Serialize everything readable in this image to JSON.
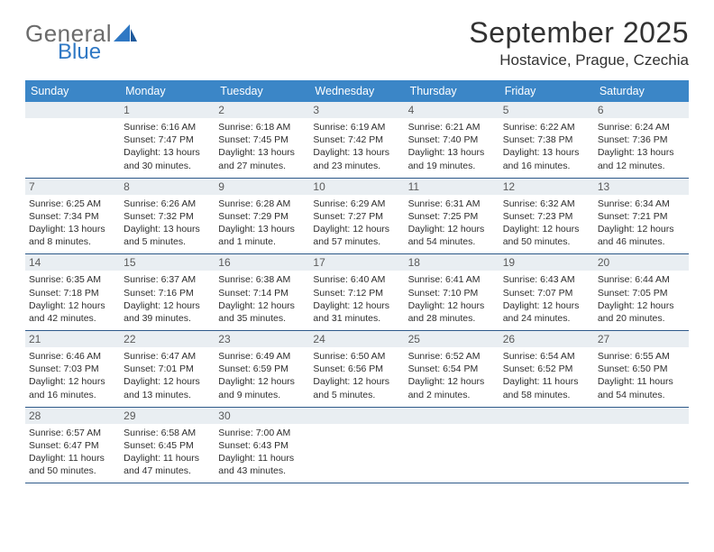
{
  "brand": {
    "general": "General",
    "blue": "Blue"
  },
  "title": "September 2025",
  "location": "Hostavice, Prague, Czechia",
  "colors": {
    "header_bg": "#3b86c7",
    "header_text": "#ffffff",
    "daynum_bg": "#e9eef2",
    "row_border": "#2e5a8a",
    "logo_gray": "#6b6b6b",
    "logo_blue": "#2f78c4"
  },
  "day_names": [
    "Sunday",
    "Monday",
    "Tuesday",
    "Wednesday",
    "Thursday",
    "Friday",
    "Saturday"
  ],
  "weeks": [
    [
      {
        "n": "",
        "lines": []
      },
      {
        "n": "1",
        "lines": [
          "Sunrise: 6:16 AM",
          "Sunset: 7:47 PM",
          "Daylight: 13 hours",
          "and 30 minutes."
        ]
      },
      {
        "n": "2",
        "lines": [
          "Sunrise: 6:18 AM",
          "Sunset: 7:45 PM",
          "Daylight: 13 hours",
          "and 27 minutes."
        ]
      },
      {
        "n": "3",
        "lines": [
          "Sunrise: 6:19 AM",
          "Sunset: 7:42 PM",
          "Daylight: 13 hours",
          "and 23 minutes."
        ]
      },
      {
        "n": "4",
        "lines": [
          "Sunrise: 6:21 AM",
          "Sunset: 7:40 PM",
          "Daylight: 13 hours",
          "and 19 minutes."
        ]
      },
      {
        "n": "5",
        "lines": [
          "Sunrise: 6:22 AM",
          "Sunset: 7:38 PM",
          "Daylight: 13 hours",
          "and 16 minutes."
        ]
      },
      {
        "n": "6",
        "lines": [
          "Sunrise: 6:24 AM",
          "Sunset: 7:36 PM",
          "Daylight: 13 hours",
          "and 12 minutes."
        ]
      }
    ],
    [
      {
        "n": "7",
        "lines": [
          "Sunrise: 6:25 AM",
          "Sunset: 7:34 PM",
          "Daylight: 13 hours",
          "and 8 minutes."
        ]
      },
      {
        "n": "8",
        "lines": [
          "Sunrise: 6:26 AM",
          "Sunset: 7:32 PM",
          "Daylight: 13 hours",
          "and 5 minutes."
        ]
      },
      {
        "n": "9",
        "lines": [
          "Sunrise: 6:28 AM",
          "Sunset: 7:29 PM",
          "Daylight: 13 hours",
          "and 1 minute."
        ]
      },
      {
        "n": "10",
        "lines": [
          "Sunrise: 6:29 AM",
          "Sunset: 7:27 PM",
          "Daylight: 12 hours",
          "and 57 minutes."
        ]
      },
      {
        "n": "11",
        "lines": [
          "Sunrise: 6:31 AM",
          "Sunset: 7:25 PM",
          "Daylight: 12 hours",
          "and 54 minutes."
        ]
      },
      {
        "n": "12",
        "lines": [
          "Sunrise: 6:32 AM",
          "Sunset: 7:23 PM",
          "Daylight: 12 hours",
          "and 50 minutes."
        ]
      },
      {
        "n": "13",
        "lines": [
          "Sunrise: 6:34 AM",
          "Sunset: 7:21 PM",
          "Daylight: 12 hours",
          "and 46 minutes."
        ]
      }
    ],
    [
      {
        "n": "14",
        "lines": [
          "Sunrise: 6:35 AM",
          "Sunset: 7:18 PM",
          "Daylight: 12 hours",
          "and 42 minutes."
        ]
      },
      {
        "n": "15",
        "lines": [
          "Sunrise: 6:37 AM",
          "Sunset: 7:16 PM",
          "Daylight: 12 hours",
          "and 39 minutes."
        ]
      },
      {
        "n": "16",
        "lines": [
          "Sunrise: 6:38 AM",
          "Sunset: 7:14 PM",
          "Daylight: 12 hours",
          "and 35 minutes."
        ]
      },
      {
        "n": "17",
        "lines": [
          "Sunrise: 6:40 AM",
          "Sunset: 7:12 PM",
          "Daylight: 12 hours",
          "and 31 minutes."
        ]
      },
      {
        "n": "18",
        "lines": [
          "Sunrise: 6:41 AM",
          "Sunset: 7:10 PM",
          "Daylight: 12 hours",
          "and 28 minutes."
        ]
      },
      {
        "n": "19",
        "lines": [
          "Sunrise: 6:43 AM",
          "Sunset: 7:07 PM",
          "Daylight: 12 hours",
          "and 24 minutes."
        ]
      },
      {
        "n": "20",
        "lines": [
          "Sunrise: 6:44 AM",
          "Sunset: 7:05 PM",
          "Daylight: 12 hours",
          "and 20 minutes."
        ]
      }
    ],
    [
      {
        "n": "21",
        "lines": [
          "Sunrise: 6:46 AM",
          "Sunset: 7:03 PM",
          "Daylight: 12 hours",
          "and 16 minutes."
        ]
      },
      {
        "n": "22",
        "lines": [
          "Sunrise: 6:47 AM",
          "Sunset: 7:01 PM",
          "Daylight: 12 hours",
          "and 13 minutes."
        ]
      },
      {
        "n": "23",
        "lines": [
          "Sunrise: 6:49 AM",
          "Sunset: 6:59 PM",
          "Daylight: 12 hours",
          "and 9 minutes."
        ]
      },
      {
        "n": "24",
        "lines": [
          "Sunrise: 6:50 AM",
          "Sunset: 6:56 PM",
          "Daylight: 12 hours",
          "and 5 minutes."
        ]
      },
      {
        "n": "25",
        "lines": [
          "Sunrise: 6:52 AM",
          "Sunset: 6:54 PM",
          "Daylight: 12 hours",
          "and 2 minutes."
        ]
      },
      {
        "n": "26",
        "lines": [
          "Sunrise: 6:54 AM",
          "Sunset: 6:52 PM",
          "Daylight: 11 hours",
          "and 58 minutes."
        ]
      },
      {
        "n": "27",
        "lines": [
          "Sunrise: 6:55 AM",
          "Sunset: 6:50 PM",
          "Daylight: 11 hours",
          "and 54 minutes."
        ]
      }
    ],
    [
      {
        "n": "28",
        "lines": [
          "Sunrise: 6:57 AM",
          "Sunset: 6:47 PM",
          "Daylight: 11 hours",
          "and 50 minutes."
        ]
      },
      {
        "n": "29",
        "lines": [
          "Sunrise: 6:58 AM",
          "Sunset: 6:45 PM",
          "Daylight: 11 hours",
          "and 47 minutes."
        ]
      },
      {
        "n": "30",
        "lines": [
          "Sunrise: 7:00 AM",
          "Sunset: 6:43 PM",
          "Daylight: 11 hours",
          "and 43 minutes."
        ]
      },
      {
        "n": "",
        "lines": []
      },
      {
        "n": "",
        "lines": []
      },
      {
        "n": "",
        "lines": []
      },
      {
        "n": "",
        "lines": []
      }
    ]
  ]
}
